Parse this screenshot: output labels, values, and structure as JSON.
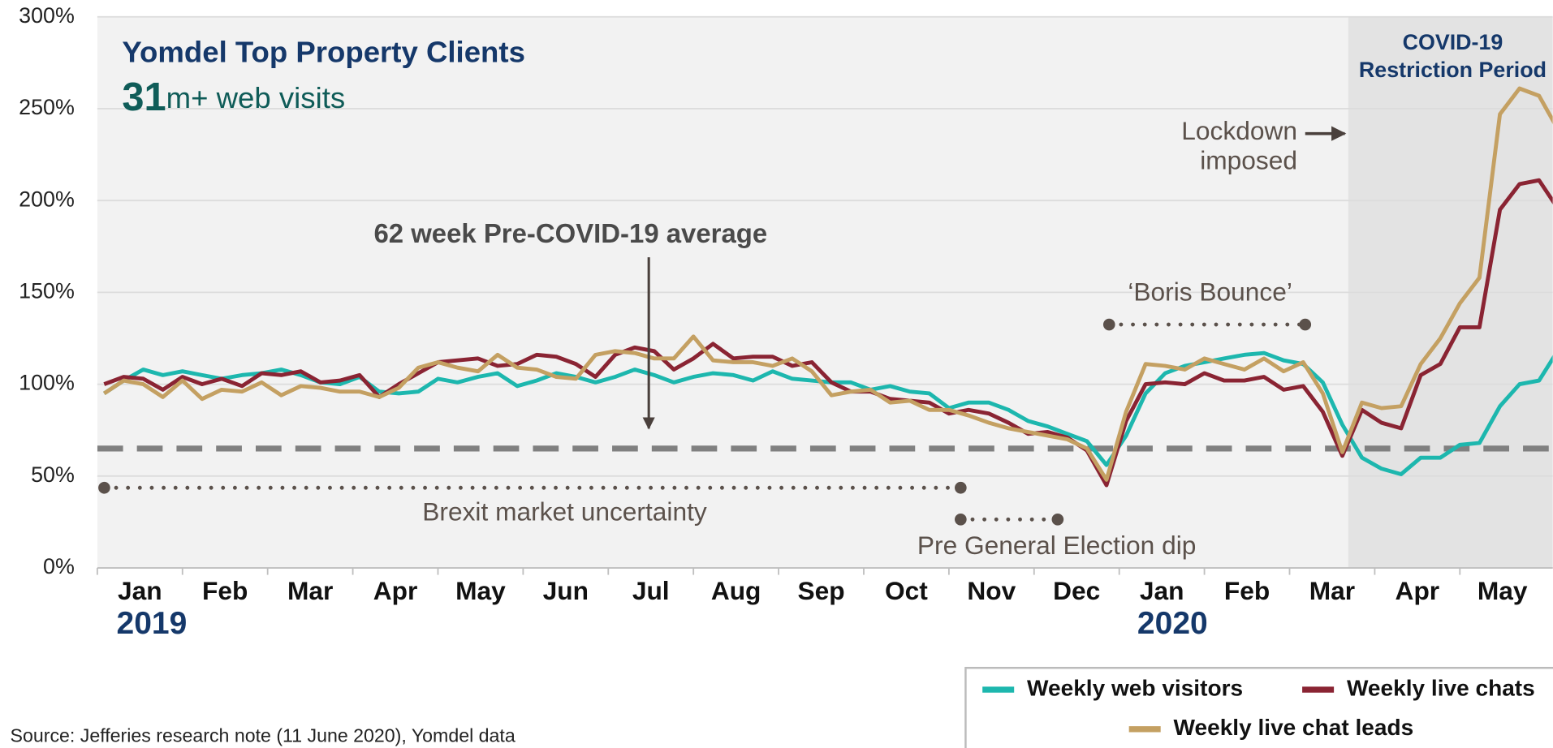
{
  "chart_data": {
    "type": "line",
    "title": "Yomdel Top Property Clients",
    "subtitle_number": "31",
    "subtitle": "m+ web visits",
    "xticks": [
      {
        "value": 0.5,
        "label": "Jan"
      },
      {
        "value": 1.5,
        "label": "Feb"
      },
      {
        "value": 2.5,
        "label": "Mar"
      },
      {
        "value": 3.5,
        "label": "Apr"
      },
      {
        "value": 4.5,
        "label": "May"
      },
      {
        "value": 5.5,
        "label": "Jun"
      },
      {
        "value": 6.5,
        "label": "Jul"
      },
      {
        "value": 7.5,
        "label": "Aug"
      },
      {
        "value": 8.5,
        "label": "Sep"
      },
      {
        "value": 9.5,
        "label": "Oct"
      },
      {
        "value": 10.5,
        "label": "Nov"
      },
      {
        "value": 11.5,
        "label": "Dec"
      },
      {
        "value": 12.5,
        "label": "Jan"
      },
      {
        "value": 13.5,
        "label": "Feb"
      },
      {
        "value": 14.5,
        "label": "Mar"
      },
      {
        "value": 15.5,
        "label": "Apr"
      },
      {
        "value": 16.5,
        "label": "May"
      }
    ],
    "year_labels": [
      "2019",
      "2020"
    ],
    "xlim": [
      0,
      17.09
    ],
    "ylim": [
      0,
      300
    ],
    "yticks": [
      {
        "value": 0,
        "label": "0%"
      },
      {
        "value": 50,
        "label": "50%"
      },
      {
        "value": 100,
        "label": "100%"
      },
      {
        "value": 150,
        "label": "150%"
      },
      {
        "value": 200,
        "label": "200%"
      },
      {
        "value": 250,
        "label": "250%"
      },
      {
        "value": 300,
        "label": "300%"
      }
    ],
    "grid": true,
    "x": [
      0.08,
      0.31,
      0.54,
      0.77,
      1.0,
      1.23,
      1.46,
      1.7,
      1.93,
      2.16,
      2.39,
      2.62,
      2.85,
      3.08,
      3.31,
      3.54,
      3.77,
      4.0,
      4.23,
      4.47,
      4.7,
      4.93,
      5.16,
      5.39,
      5.62,
      5.85,
      6.08,
      6.31,
      6.54,
      6.77,
      7.0,
      7.23,
      7.47,
      7.7,
      7.93,
      8.16,
      8.39,
      8.62,
      8.85,
      9.08,
      9.31,
      9.54,
      9.77,
      10.0,
      10.23,
      10.47,
      10.7,
      10.93,
      11.16,
      11.39,
      11.62,
      11.85,
      12.08,
      12.31,
      12.54,
      12.77,
      13.0,
      13.23,
      13.47,
      13.7,
      13.93,
      14.16,
      14.39,
      14.62,
      14.85,
      15.08,
      15.31,
      15.54,
      15.77,
      16.0,
      16.23,
      16.47,
      16.7,
      16.93,
      17.16
    ],
    "series": [
      {
        "name": "Weekly web visitors",
        "color": "#1db7ae",
        "values": [
          95,
          102,
          108,
          105,
          107,
          105,
          103,
          105,
          106,
          108,
          105,
          101,
          100,
          104,
          96,
          95,
          96,
          103,
          101,
          104,
          106,
          99,
          102,
          106,
          104,
          101,
          104,
          108,
          105,
          101,
          104,
          106,
          105,
          102,
          107,
          103,
          102,
          101,
          101,
          97,
          99,
          96,
          95,
          87,
          90,
          90,
          86,
          80,
          77,
          73,
          69,
          56,
          72,
          95,
          106,
          110,
          112,
          114,
          116,
          117,
          113,
          111,
          101,
          78,
          60,
          54,
          51,
          60,
          60,
          67,
          68,
          88,
          100,
          102,
          119
        ]
      },
      {
        "name": "Weekly live chats",
        "color": "#8a2433",
        "values": [
          100,
          104,
          103,
          97,
          104,
          100,
          103,
          99,
          106,
          105,
          107,
          101,
          102,
          105,
          93,
          100,
          106,
          112,
          113,
          114,
          110,
          111,
          116,
          115,
          111,
          104,
          116,
          120,
          118,
          108,
          114,
          122,
          114,
          115,
          115,
          110,
          112,
          101,
          96,
          96,
          92,
          91,
          90,
          84,
          86,
          84,
          79,
          73,
          74,
          71,
          64,
          45,
          80,
          100,
          101,
          100,
          106,
          102,
          102,
          104,
          97,
          99,
          85,
          61,
          86,
          79,
          76,
          105,
          111,
          131,
          131,
          195,
          209,
          211,
          195
        ]
      },
      {
        "name": "Weekly live chat leads",
        "color": "#c4a062",
        "values": [
          95,
          102,
          100,
          93,
          102,
          92,
          97,
          96,
          101,
          94,
          99,
          98,
          96,
          96,
          93,
          98,
          109,
          112,
          109,
          107,
          116,
          109,
          108,
          104,
          103,
          116,
          118,
          117,
          114,
          114,
          126,
          113,
          112,
          112,
          110,
          114,
          107,
          94,
          96,
          97,
          90,
          91,
          86,
          86,
          83,
          79,
          76,
          74,
          72,
          70,
          65,
          48,
          85,
          111,
          110,
          108,
          114,
          111,
          108,
          114,
          107,
          112,
          95,
          63,
          90,
          87,
          88,
          111,
          125,
          144,
          158,
          247,
          261,
          257,
          238
        ]
      }
    ],
    "average_line": 65,
    "covid_start": 14.69,
    "annotations": {
      "covid_line1": "COVID-19",
      "covid_line2": "Restriction Period",
      "lockdown_line1": "Lockdown",
      "lockdown_line2": "imposed",
      "average": "62 week Pre-COVID-19 average",
      "boris": "‘Boris Bounce’",
      "brexit": "Brexit market uncertainty",
      "election": "Pre General Election dip"
    },
    "source": "Source: Jefferies research note (11 June 2020), Yomdel data"
  }
}
